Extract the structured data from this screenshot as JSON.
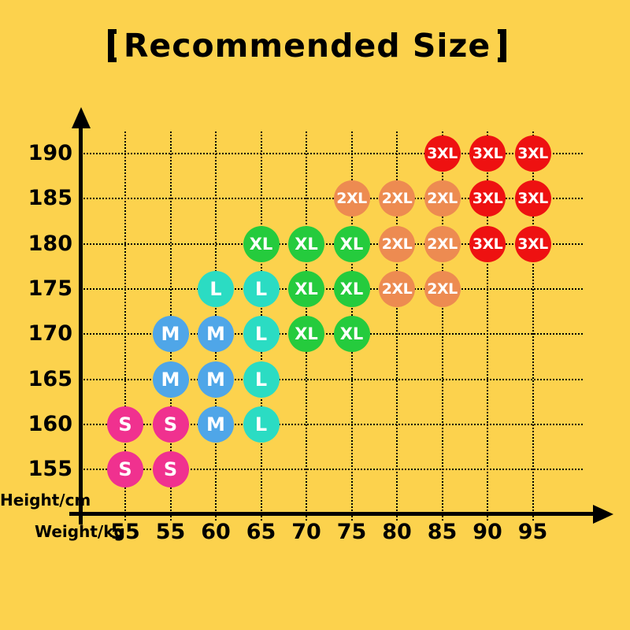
{
  "page": {
    "background_color": "#FCD24D",
    "text_color": "#000000",
    "dot_text_color": "#FFFFFF"
  },
  "title": {
    "full": "【Recommended Size】",
    "text": "Recommended Size"
  },
  "chart_data": {
    "type": "scatter",
    "title": "【Recommended Size】",
    "xlabel": "Weight/kg",
    "ylabel": "Height/cm",
    "x_tick_labels": [
      "55",
      "55",
      "60",
      "65",
      "70",
      "75",
      "80",
      "85",
      "90",
      "95"
    ],
    "y_tick_labels": [
      "190",
      "185",
      "180",
      "175",
      "170",
      "165",
      "160",
      "155"
    ],
    "y_values": [
      190,
      185,
      180,
      175,
      170,
      165,
      160,
      155
    ],
    "grid": true,
    "legend": false,
    "series": [
      {
        "name": "S",
        "color": "#F0318F",
        "points": [
          {
            "col": 1,
            "height": 160
          },
          {
            "col": 2,
            "height": 160
          },
          {
            "col": 1,
            "height": 155
          },
          {
            "col": 2,
            "height": 155
          }
        ]
      },
      {
        "name": "M",
        "color": "#4FA6E8",
        "points": [
          {
            "col": 2,
            "height": 170
          },
          {
            "col": 3,
            "height": 170
          },
          {
            "col": 2,
            "height": 165
          },
          {
            "col": 3,
            "height": 165
          },
          {
            "col": 3,
            "height": 160
          }
        ]
      },
      {
        "name": "L",
        "color": "#2BDCC3",
        "points": [
          {
            "col": 3,
            "height": 175
          },
          {
            "col": 4,
            "height": 175
          },
          {
            "col": 4,
            "height": 170
          },
          {
            "col": 4,
            "height": 165
          },
          {
            "col": 4,
            "height": 160
          }
        ]
      },
      {
        "name": "XL",
        "color": "#25CB3D",
        "points": [
          {
            "col": 4,
            "height": 180
          },
          {
            "col": 5,
            "height": 180
          },
          {
            "col": 6,
            "height": 180
          },
          {
            "col": 5,
            "height": 175
          },
          {
            "col": 6,
            "height": 175
          },
          {
            "col": 5,
            "height": 170
          },
          {
            "col": 6,
            "height": 170
          }
        ]
      },
      {
        "name": "2XL",
        "color": "#ED8B51",
        "points": [
          {
            "col": 6,
            "height": 185
          },
          {
            "col": 7,
            "height": 185
          },
          {
            "col": 8,
            "height": 185
          },
          {
            "col": 7,
            "height": 180
          },
          {
            "col": 8,
            "height": 180
          },
          {
            "col": 7,
            "height": 175
          },
          {
            "col": 8,
            "height": 175
          }
        ]
      },
      {
        "name": "3XL",
        "color": "#EE1111",
        "points": [
          {
            "col": 8,
            "height": 190
          },
          {
            "col": 9,
            "height": 190
          },
          {
            "col": 10,
            "height": 190
          },
          {
            "col": 9,
            "height": 185
          },
          {
            "col": 10,
            "height": 185
          },
          {
            "col": 9,
            "height": 180
          },
          {
            "col": 10,
            "height": 180
          }
        ]
      }
    ]
  }
}
